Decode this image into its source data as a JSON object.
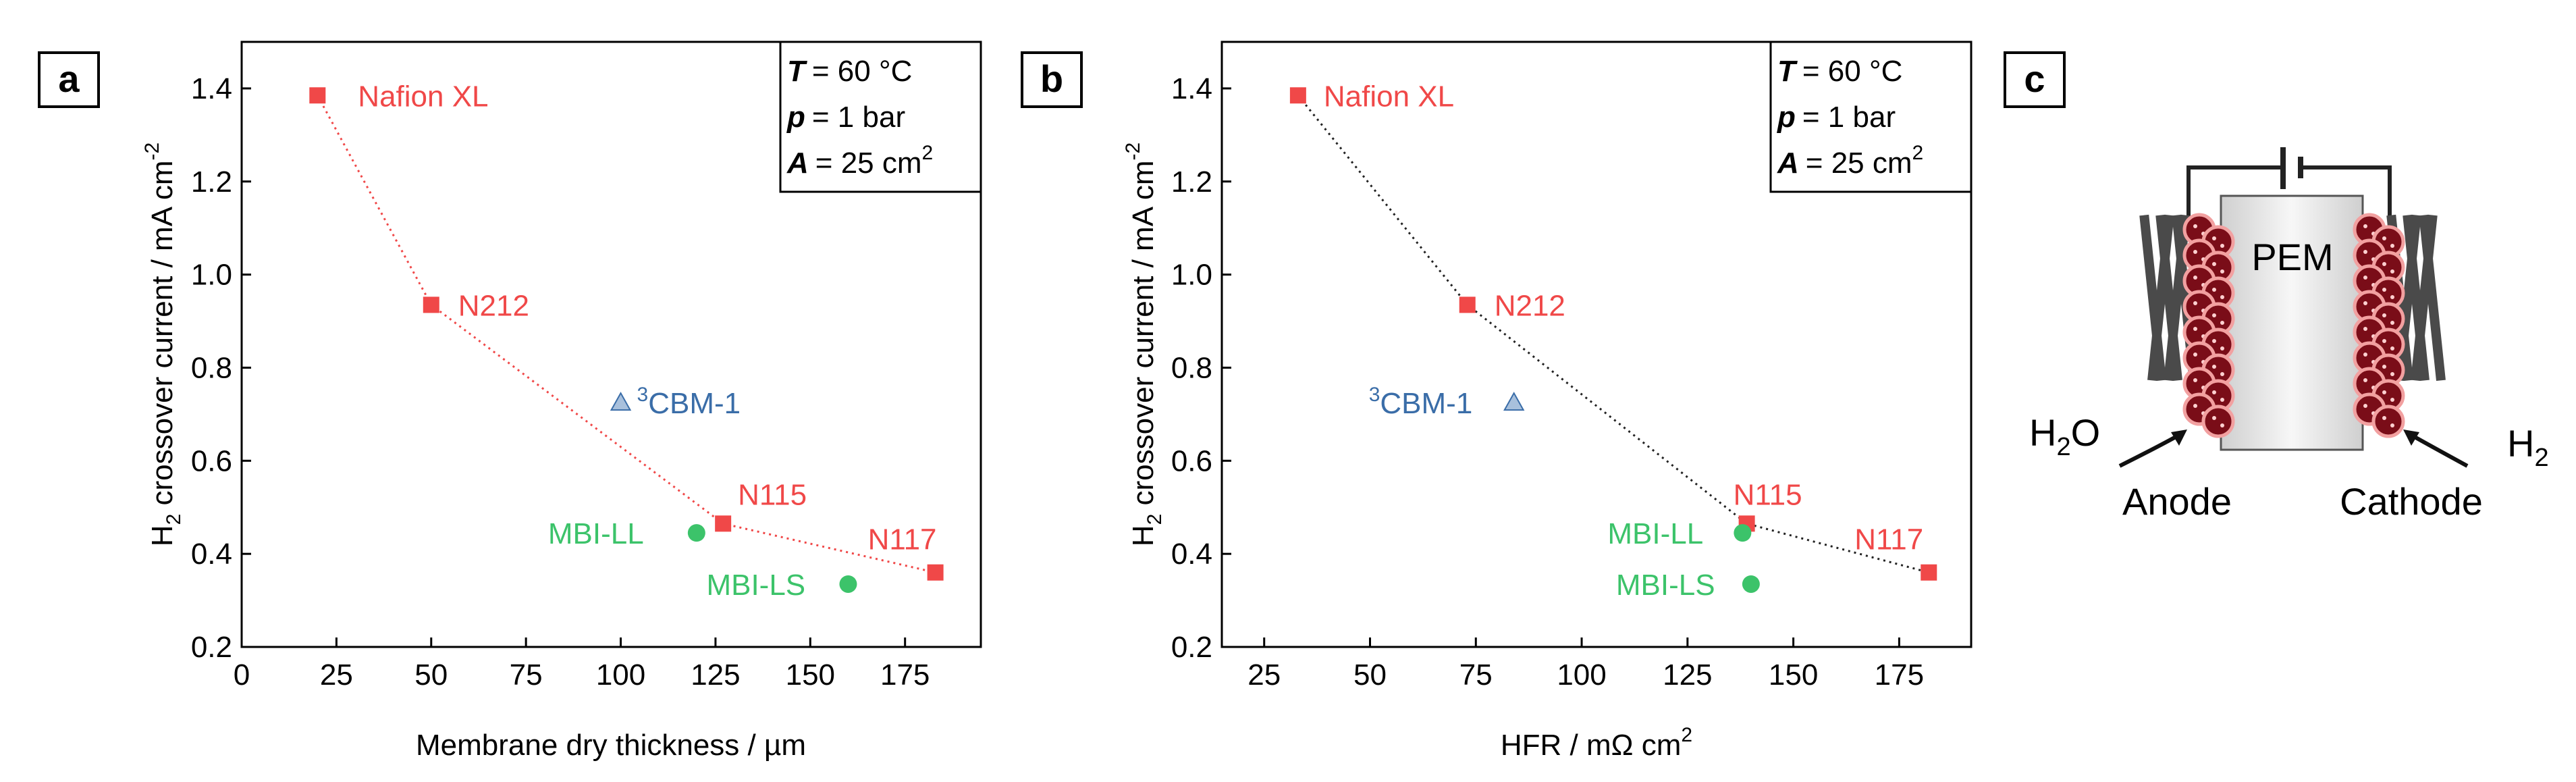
{
  "colors": {
    "nafion": "#f04848",
    "mbi": "#3cc36a",
    "cbm": "#3a6da8",
    "cbm_fill": "#a8c0dc"
  },
  "conditions": {
    "T": "= 60 °C",
    "p": "= 1 bar",
    "A": "=  25 cm"
  },
  "chart_data": [
    {
      "type": "scatter",
      "panel": "a",
      "xlabel": "Membrane dry thickness / µm",
      "ylabel": "H2 crossover current / mA cm-2",
      "xlim": [
        0,
        195
      ],
      "ylim": [
        0.2,
        1.5
      ],
      "xticks": [
        "0",
        "25",
        "50",
        "75",
        "100",
        "125",
        "150",
        "175"
      ],
      "yticks": [
        "0.2",
        "0.4",
        "0.6",
        "0.8",
        "1.0",
        "1.2",
        "1.4"
      ],
      "line_style": "red dotted",
      "series": [
        {
          "name": "Nafion",
          "marker": "square",
          "points": [
            {
              "label": "Nafion XL",
              "x": 20,
              "y": 1.385
            },
            {
              "label": "N212",
              "x": 50,
              "y": 0.935
            },
            {
              "label": "N115",
              "x": 127,
              "y": 0.465
            },
            {
              "label": "N117",
              "x": 183,
              "y": 0.36
            }
          ]
        },
        {
          "name": "MBI",
          "marker": "circle",
          "points": [
            {
              "label": "MBI-LL",
              "x": 120,
              "y": 0.445
            },
            {
              "label": "MBI-LS",
              "x": 160,
              "y": 0.335
            }
          ]
        },
        {
          "name": "3CBM-1",
          "marker": "triangle",
          "points": [
            {
              "label": "CBM-1",
              "x": 100,
              "y": 0.725
            }
          ]
        }
      ]
    },
    {
      "type": "scatter",
      "panel": "b",
      "xlabel": "HFR / mΩ cm",
      "ylabel": "H2 crossover current / mA cm-2",
      "xlim": [
        15,
        192
      ],
      "ylim": [
        0.2,
        1.5
      ],
      "xticks": [
        "25",
        "50",
        "75",
        "100",
        "125",
        "150",
        "175"
      ],
      "yticks": [
        "0.2",
        "0.4",
        "0.6",
        "0.8",
        "1.0",
        "1.2",
        "1.4"
      ],
      "line_style": "black dotted",
      "series": [
        {
          "name": "Nafion",
          "marker": "square",
          "points": [
            {
              "label": "Nafion XL",
              "x": 33,
              "y": 1.385
            },
            {
              "label": "N212",
              "x": 73,
              "y": 0.935
            },
            {
              "label": "N115",
              "x": 139,
              "y": 0.465
            },
            {
              "label": "N117",
              "x": 182,
              "y": 0.36
            }
          ]
        },
        {
          "name": "MBI",
          "marker": "circle",
          "points": [
            {
              "label": "MBI-LL",
              "x": 138,
              "y": 0.445
            },
            {
              "label": "MBI-LS",
              "x": 140,
              "y": 0.335
            }
          ]
        },
        {
          "name": "3CBM-1",
          "marker": "triangle",
          "points": [
            {
              "label": "CBM-1",
              "x": 84,
              "y": 0.725
            }
          ]
        }
      ]
    }
  ],
  "schematic": {
    "label_letter": "c",
    "membrane": "PEM",
    "anode": "Anode",
    "cathode": "Cathode",
    "water": "H",
    "hydrogen": "H"
  }
}
